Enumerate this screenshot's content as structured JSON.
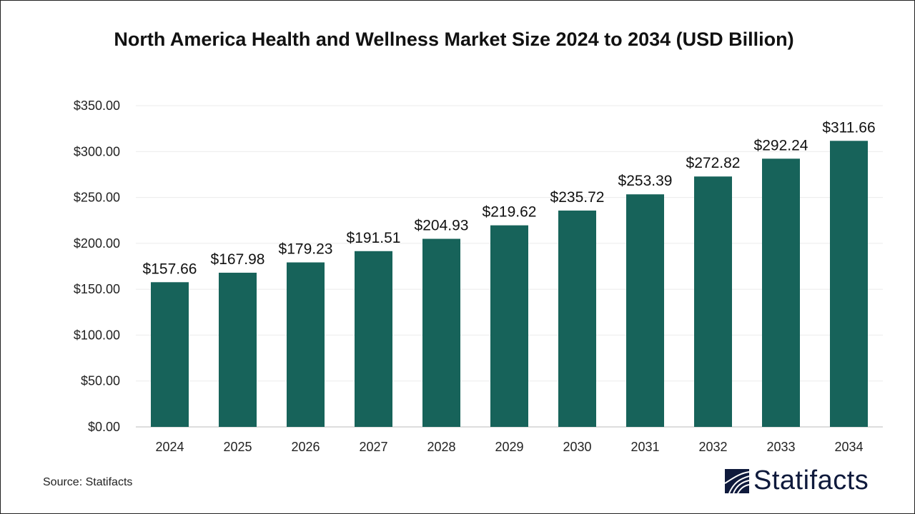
{
  "chart_data": {
    "type": "bar",
    "title": "North America Health and Wellness Market Size 2024 to 2034 (USD Billion)",
    "categories": [
      "2024",
      "2025",
      "2026",
      "2027",
      "2028",
      "2029",
      "2030",
      "2031",
      "2032",
      "2033",
      "2034"
    ],
    "values": [
      157.66,
      167.98,
      179.23,
      191.51,
      204.93,
      219.62,
      235.72,
      253.39,
      272.82,
      292.24,
      311.66
    ],
    "data_labels": [
      "$157.66",
      "$167.98",
      "$179.23",
      "$191.51",
      "$204.93",
      "$219.62",
      "$235.72",
      "$253.39",
      "$272.82",
      "$292.24",
      "$311.66"
    ],
    "yticks": [
      "$0.00",
      "$50.00",
      "$100.00",
      "$150.00",
      "$200.00",
      "$250.00",
      "$300.00",
      "$350.00"
    ],
    "ylim": [
      0,
      350
    ],
    "xlabel": "",
    "ylabel": "",
    "grid": true,
    "bar_color": "#17635a"
  },
  "source": "Source: Statifacts",
  "logo": "Statifacts"
}
